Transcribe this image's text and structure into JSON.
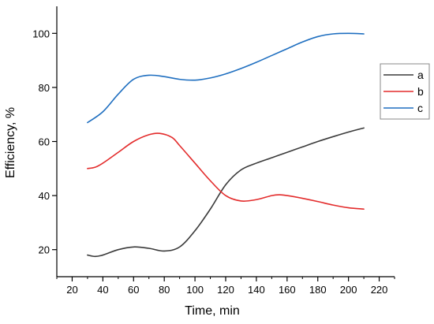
{
  "chart_data": {
    "type": "line",
    "title": "",
    "xlabel": "Time, min",
    "ylabel": "Efficiency, %",
    "xlim": [
      10,
      230
    ],
    "ylim": [
      10,
      110
    ],
    "xticks": [
      20,
      40,
      60,
      80,
      100,
      120,
      140,
      160,
      180,
      200,
      220
    ],
    "yticks": [
      20,
      40,
      60,
      80,
      100
    ],
    "grid": false,
    "legend": "right",
    "series": [
      {
        "name": "a",
        "color": "#3a3a3a",
        "x": [
          30,
          35,
          40,
          50,
          60,
          70,
          80,
          90,
          100,
          110,
          120,
          130,
          140,
          150,
          160,
          170,
          180,
          190,
          200,
          210
        ],
        "y": [
          18,
          17.5,
          18,
          20,
          21,
          20.5,
          19.5,
          21,
          27,
          35,
          44,
          49.5,
          52,
          54,
          56,
          58,
          60,
          61.8,
          63.5,
          65
        ]
      },
      {
        "name": "b",
        "color": "#e32b2b",
        "x": [
          30,
          35,
          40,
          50,
          60,
          70,
          77,
          85,
          90,
          100,
          110,
          120,
          130,
          140,
          150,
          155,
          160,
          170,
          180,
          190,
          200,
          210
        ],
        "y": [
          50,
          50.5,
          52,
          56,
          60,
          62.5,
          63,
          61.5,
          58.5,
          52,
          45.5,
          40,
          38,
          38.5,
          40,
          40.3,
          40,
          39,
          37.8,
          36.5,
          35.5,
          35
        ]
      },
      {
        "name": "c",
        "color": "#1f6fc0",
        "x": [
          30,
          40,
          50,
          60,
          70,
          80,
          90,
          100,
          110,
          120,
          130,
          140,
          150,
          160,
          170,
          180,
          190,
          200,
          210
        ],
        "y": [
          67,
          71,
          77.5,
          83,
          84.5,
          84,
          83,
          82.7,
          83.5,
          85,
          87,
          89.3,
          91.8,
          94.3,
          96.8,
          98.8,
          99.8,
          100,
          99.8
        ]
      }
    ]
  }
}
